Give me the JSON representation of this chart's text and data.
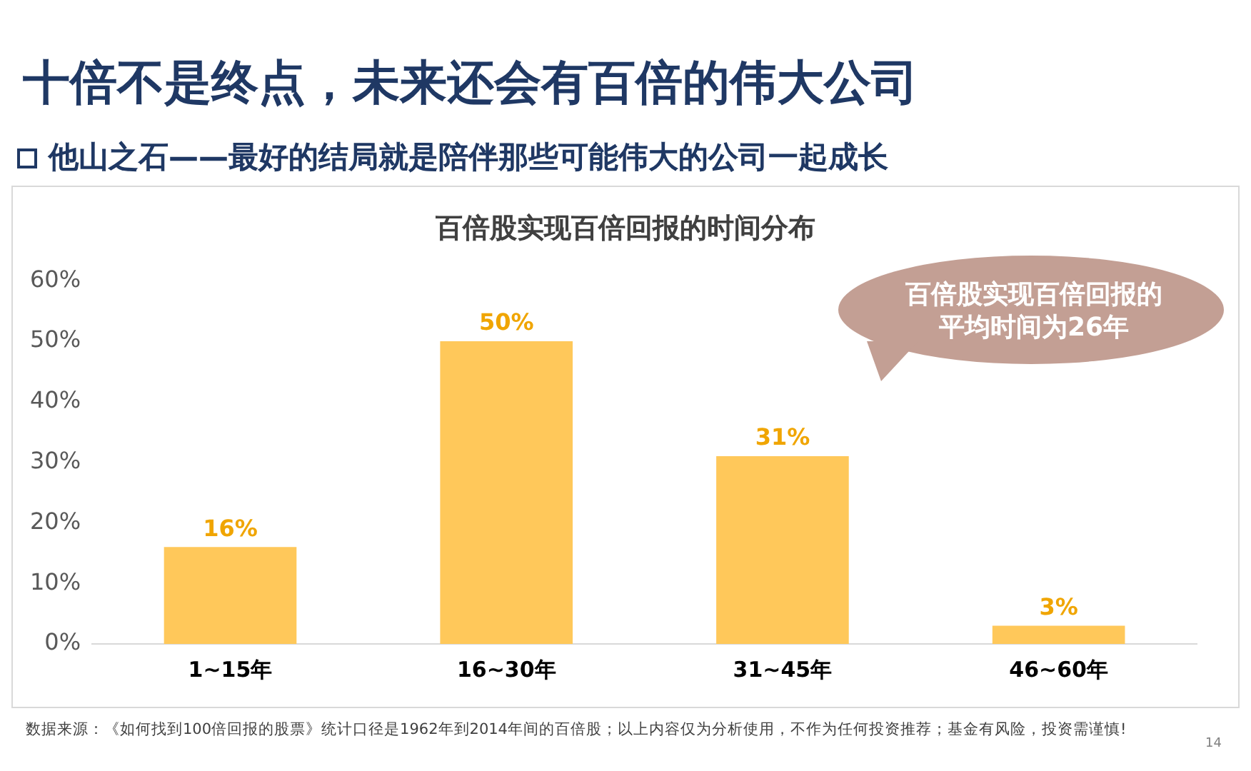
{
  "chart_data": {
    "type": "bar",
    "title": "十倍不是终点，未来还会有百倍的伟大公司",
    "subtitle": "他山之石——最好的结局就是陪伴那些可能伟大的公司一起成长",
    "categories": [
      "1~15年",
      "16~30年",
      "31~45年",
      "46~60年"
    ],
    "values": [
      16,
      50,
      31,
      3
    ],
    "color": "#ffc85a",
    "value_labels": [
      "16%",
      "50%",
      "31%",
      "3%"
    ],
    "ylim": [
      0,
      60
    ],
    "yticks": [
      {
        "value": 0,
        "label": "0%"
      },
      {
        "value": 10,
        "label": "10%"
      },
      {
        "value": 20,
        "label": "20%"
      },
      {
        "value": 30,
        "label": "30%"
      },
      {
        "value": 40,
        "label": "40%"
      },
      {
        "value": 50,
        "label": "50%"
      },
      {
        "value": 60,
        "label": "60%"
      }
    ],
    "grid": false,
    "legend": false,
    "annotations": [
      "百倍股实现百倍回报的时间分布",
      "百倍股实现百倍回报的平均时间为26年",
      "数据来源：《如何找到100倍回报的股票》统计口径是1962年到2014年间的百倍股；以上内容仅为分析使用，不作为任何投资推荐；基金有风险，投资需谨慎!",
      "14"
    ]
  }
}
